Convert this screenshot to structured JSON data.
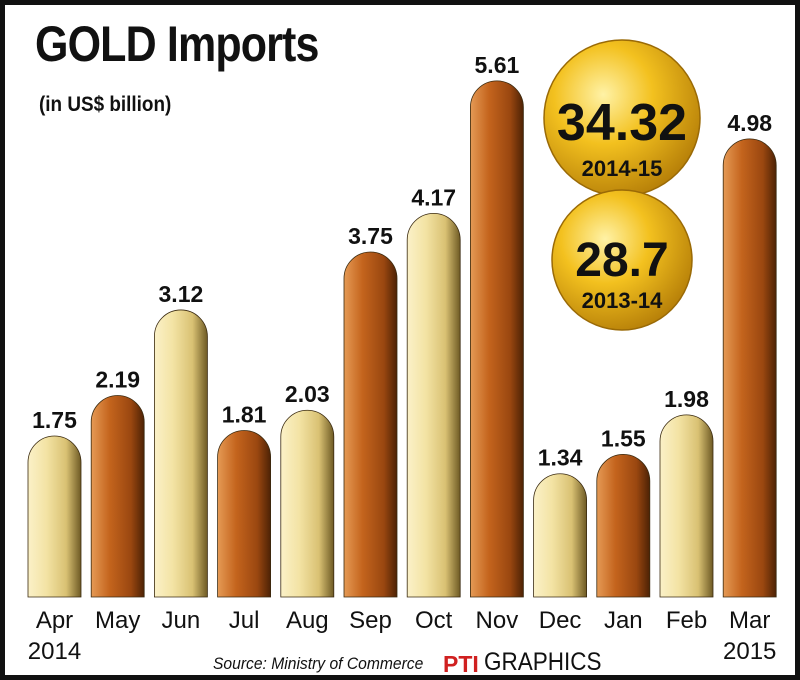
{
  "chart_data": {
    "type": "bar",
    "title": "GOLD Imports",
    "subtitle": "(in US$ billion)",
    "categories": [
      "Apr",
      "May",
      "Jun",
      "Jul",
      "Aug",
      "Sep",
      "Oct",
      "Nov",
      "Dec",
      "Jan",
      "Feb",
      "Mar"
    ],
    "year_labels": [
      {
        "category": "Apr",
        "text": "2014"
      },
      {
        "category": "Mar",
        "text": "2015"
      }
    ],
    "values": [
      1.75,
      2.19,
      3.12,
      1.81,
      2.03,
      3.75,
      4.17,
      5.61,
      1.34,
      1.55,
      1.98,
      4.98
    ],
    "value_labels": [
      "1.75",
      "2.19",
      "3.12",
      "1.81",
      "2.03",
      "3.75",
      "4.17",
      "5.61",
      "1.34",
      "1.55",
      "1.98",
      "4.98"
    ],
    "bar_colors": [
      "light-gold",
      "copper",
      "light-gold",
      "copper",
      "light-gold",
      "copper",
      "light-gold",
      "copper",
      "light-gold",
      "copper",
      "light-gold",
      "copper"
    ],
    "ylim": [
      0,
      6
    ],
    "grid": false,
    "legend": "none",
    "annotations": [
      {
        "value": "34.32",
        "label": "2014-15"
      },
      {
        "value": "28.7",
        "label": "2013-14"
      }
    ]
  },
  "colors": {
    "light_gold": "#f3e3a4",
    "copper": "#c4641d",
    "coin_gold": "#f3c11f",
    "text": "#111111"
  },
  "footer": {
    "source": "Source: Ministry of Commerce",
    "logo_text": "PTI",
    "credit": "GRAPHICS"
  }
}
